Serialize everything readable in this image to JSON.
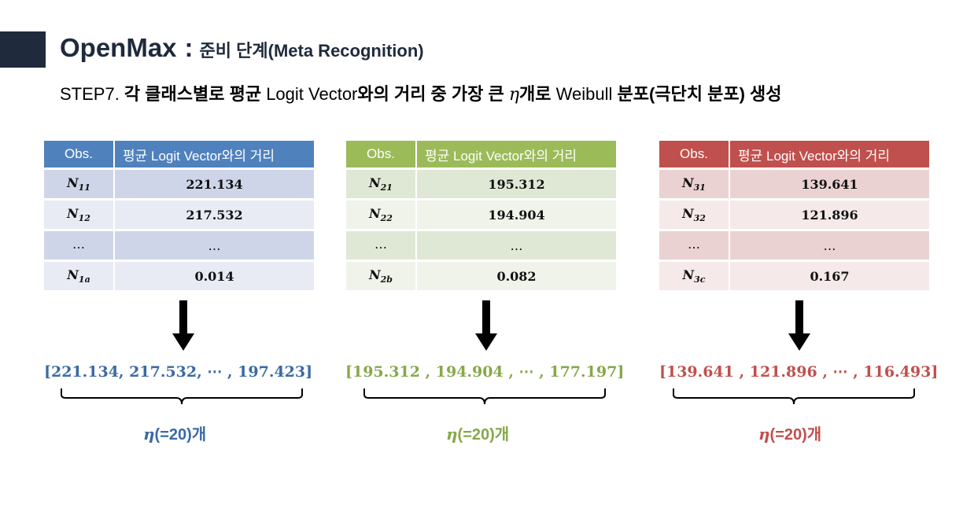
{
  "header": {
    "title": "OpenMax",
    "colon": ":",
    "subtitle": "준비 단계(Meta Recognition)"
  },
  "step": {
    "prefix": "STEP7.",
    "part1": " 각 클래스별로 평균 ",
    "part2": "Logit Vector",
    "part3": "와의 거리 중 가장 큰 ",
    "eta": "η",
    "part4": "개로 ",
    "part5": "Weibull",
    "part6": " 분포(극단치 분포) 생성"
  },
  "colors": {
    "blue": "#4f81bd",
    "green": "#9bbb59",
    "red": "#c0504d",
    "dark": "#1f2a3c"
  },
  "panels": [
    {
      "header_obs": "Obs.",
      "header_dist": "평균 Logit Vector와의 거리",
      "rows": [
        {
          "n": "N",
          "sub": "11",
          "v": "221.134"
        },
        {
          "n": "N",
          "sub": "12",
          "v": "217.532"
        },
        {
          "n": "…",
          "sub": "",
          "v": "…"
        },
        {
          "n": "N",
          "sub": "1a",
          "v": "0.014"
        }
      ],
      "vector": "[221.134, 217.532,  ⋯  , 197.423]",
      "count_eta": "η",
      "count_text": "(=20)개"
    },
    {
      "header_obs": "Obs.",
      "header_dist": "평균 Logit Vector와의 거리",
      "rows": [
        {
          "n": "N",
          "sub": "21",
          "v": "195.312"
        },
        {
          "n": "N",
          "sub": "22",
          "v": "194.904"
        },
        {
          "n": "…",
          "sub": "",
          "v": "…"
        },
        {
          "n": "N",
          "sub": "2b",
          "v": "0.082"
        }
      ],
      "vector": "[195.312 , 194.904 ,  ⋯  , 177.197]",
      "count_eta": "η",
      "count_text": "(=20)개"
    },
    {
      "header_obs": "Obs.",
      "header_dist": "평균 Logit Vector와의 거리",
      "rows": [
        {
          "n": "N",
          "sub": "31",
          "v": "139.641"
        },
        {
          "n": "N",
          "sub": "32",
          "v": "121.896"
        },
        {
          "n": "…",
          "sub": "",
          "v": "…"
        },
        {
          "n": "N",
          "sub": "3c",
          "v": "0.167"
        }
      ],
      "vector": "[139.641 , 121.896 ,  ⋯  , 116.493]",
      "count_eta": "η",
      "count_text": "(=20)개"
    }
  ]
}
